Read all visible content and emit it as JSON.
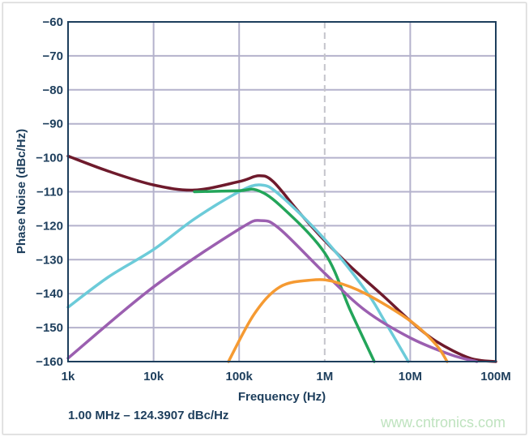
{
  "chart_data": {
    "type": "line",
    "xlabel": "Frequency (Hz)",
    "ylabel": "Phase Noise (dBc/Hz)",
    "x_scale": "log",
    "xlim": [
      1000,
      100000000
    ],
    "ylim": [
      -160,
      -60
    ],
    "x_ticks": [
      {
        "value": 1000,
        "label": "1k"
      },
      {
        "value": 10000,
        "label": "10k"
      },
      {
        "value": 100000,
        "label": "100k"
      },
      {
        "value": 1000000,
        "label": "1M"
      },
      {
        "value": 10000000,
        "label": "10M"
      },
      {
        "value": 100000000,
        "label": "100M"
      }
    ],
    "y_ticks": [
      {
        "value": -60,
        "label": "−60"
      },
      {
        "value": -70,
        "label": "−70"
      },
      {
        "value": -80,
        "label": "−80"
      },
      {
        "value": -90,
        "label": "−90"
      },
      {
        "value": -100,
        "label": "−100"
      },
      {
        "value": -110,
        "label": "−110"
      },
      {
        "value": -120,
        "label": "−120"
      },
      {
        "value": -130,
        "label": "−130"
      },
      {
        "value": -140,
        "label": "−140"
      },
      {
        "value": -150,
        "label": "−150"
      },
      {
        "value": -160,
        "label": "−160"
      }
    ],
    "grid": true,
    "marker_line": {
      "x": 1000000,
      "style": "dashed"
    },
    "series": [
      {
        "color": "#6e1a2c",
        "points": [
          [
            1000,
            -99.5
          ],
          [
            3000,
            -104
          ],
          [
            10000,
            -108
          ],
          [
            30000,
            -109.5
          ],
          [
            100000,
            -107
          ],
          [
            170000,
            -105.3
          ],
          [
            250000,
            -107
          ],
          [
            500000,
            -116
          ],
          [
            1000000,
            -124.4
          ],
          [
            2000000,
            -132
          ],
          [
            5000000,
            -141
          ],
          [
            10000000,
            -148
          ],
          [
            20000000,
            -154
          ],
          [
            50000000,
            -159
          ],
          [
            100000000,
            -160
          ]
        ]
      },
      {
        "color": "#6ccbd9",
        "points": [
          [
            1000,
            -144
          ],
          [
            3000,
            -135
          ],
          [
            10000,
            -127
          ],
          [
            30000,
            -118
          ],
          [
            100000,
            -110
          ],
          [
            180000,
            -108
          ],
          [
            300000,
            -111
          ],
          [
            1000000,
            -124
          ],
          [
            3000000,
            -139
          ],
          [
            5000000,
            -148
          ],
          [
            9500000,
            -160
          ]
        ]
      },
      {
        "color": "#23a55a",
        "points": [
          [
            30000,
            -110
          ],
          [
            100000,
            -109.7
          ],
          [
            160000,
            -109.5
          ],
          [
            300000,
            -114
          ],
          [
            1000000,
            -128
          ],
          [
            2000000,
            -145
          ],
          [
            3800000,
            -160
          ]
        ]
      },
      {
        "color": "#9b5fb0",
        "points": [
          [
            1000,
            -159
          ],
          [
            10000,
            -138
          ],
          [
            100000,
            -121
          ],
          [
            180000,
            -118.5
          ],
          [
            300000,
            -121
          ],
          [
            1000000,
            -134
          ],
          [
            3000000,
            -145
          ],
          [
            10000000,
            -153
          ],
          [
            30000000,
            -158
          ],
          [
            60000000,
            -160
          ]
        ]
      },
      {
        "color": "#f59a32",
        "points": [
          [
            75000,
            -160
          ],
          [
            150000,
            -146
          ],
          [
            300000,
            -138
          ],
          [
            700000,
            -136
          ],
          [
            1300000,
            -136.5
          ],
          [
            3000000,
            -140
          ],
          [
            10000000,
            -148
          ],
          [
            20000000,
            -155
          ],
          [
            27000000,
            -160
          ]
        ]
      }
    ]
  },
  "readout": "1.00 MHz – 124.3907 dBc/Hz",
  "watermark": "www.cntronics.com"
}
